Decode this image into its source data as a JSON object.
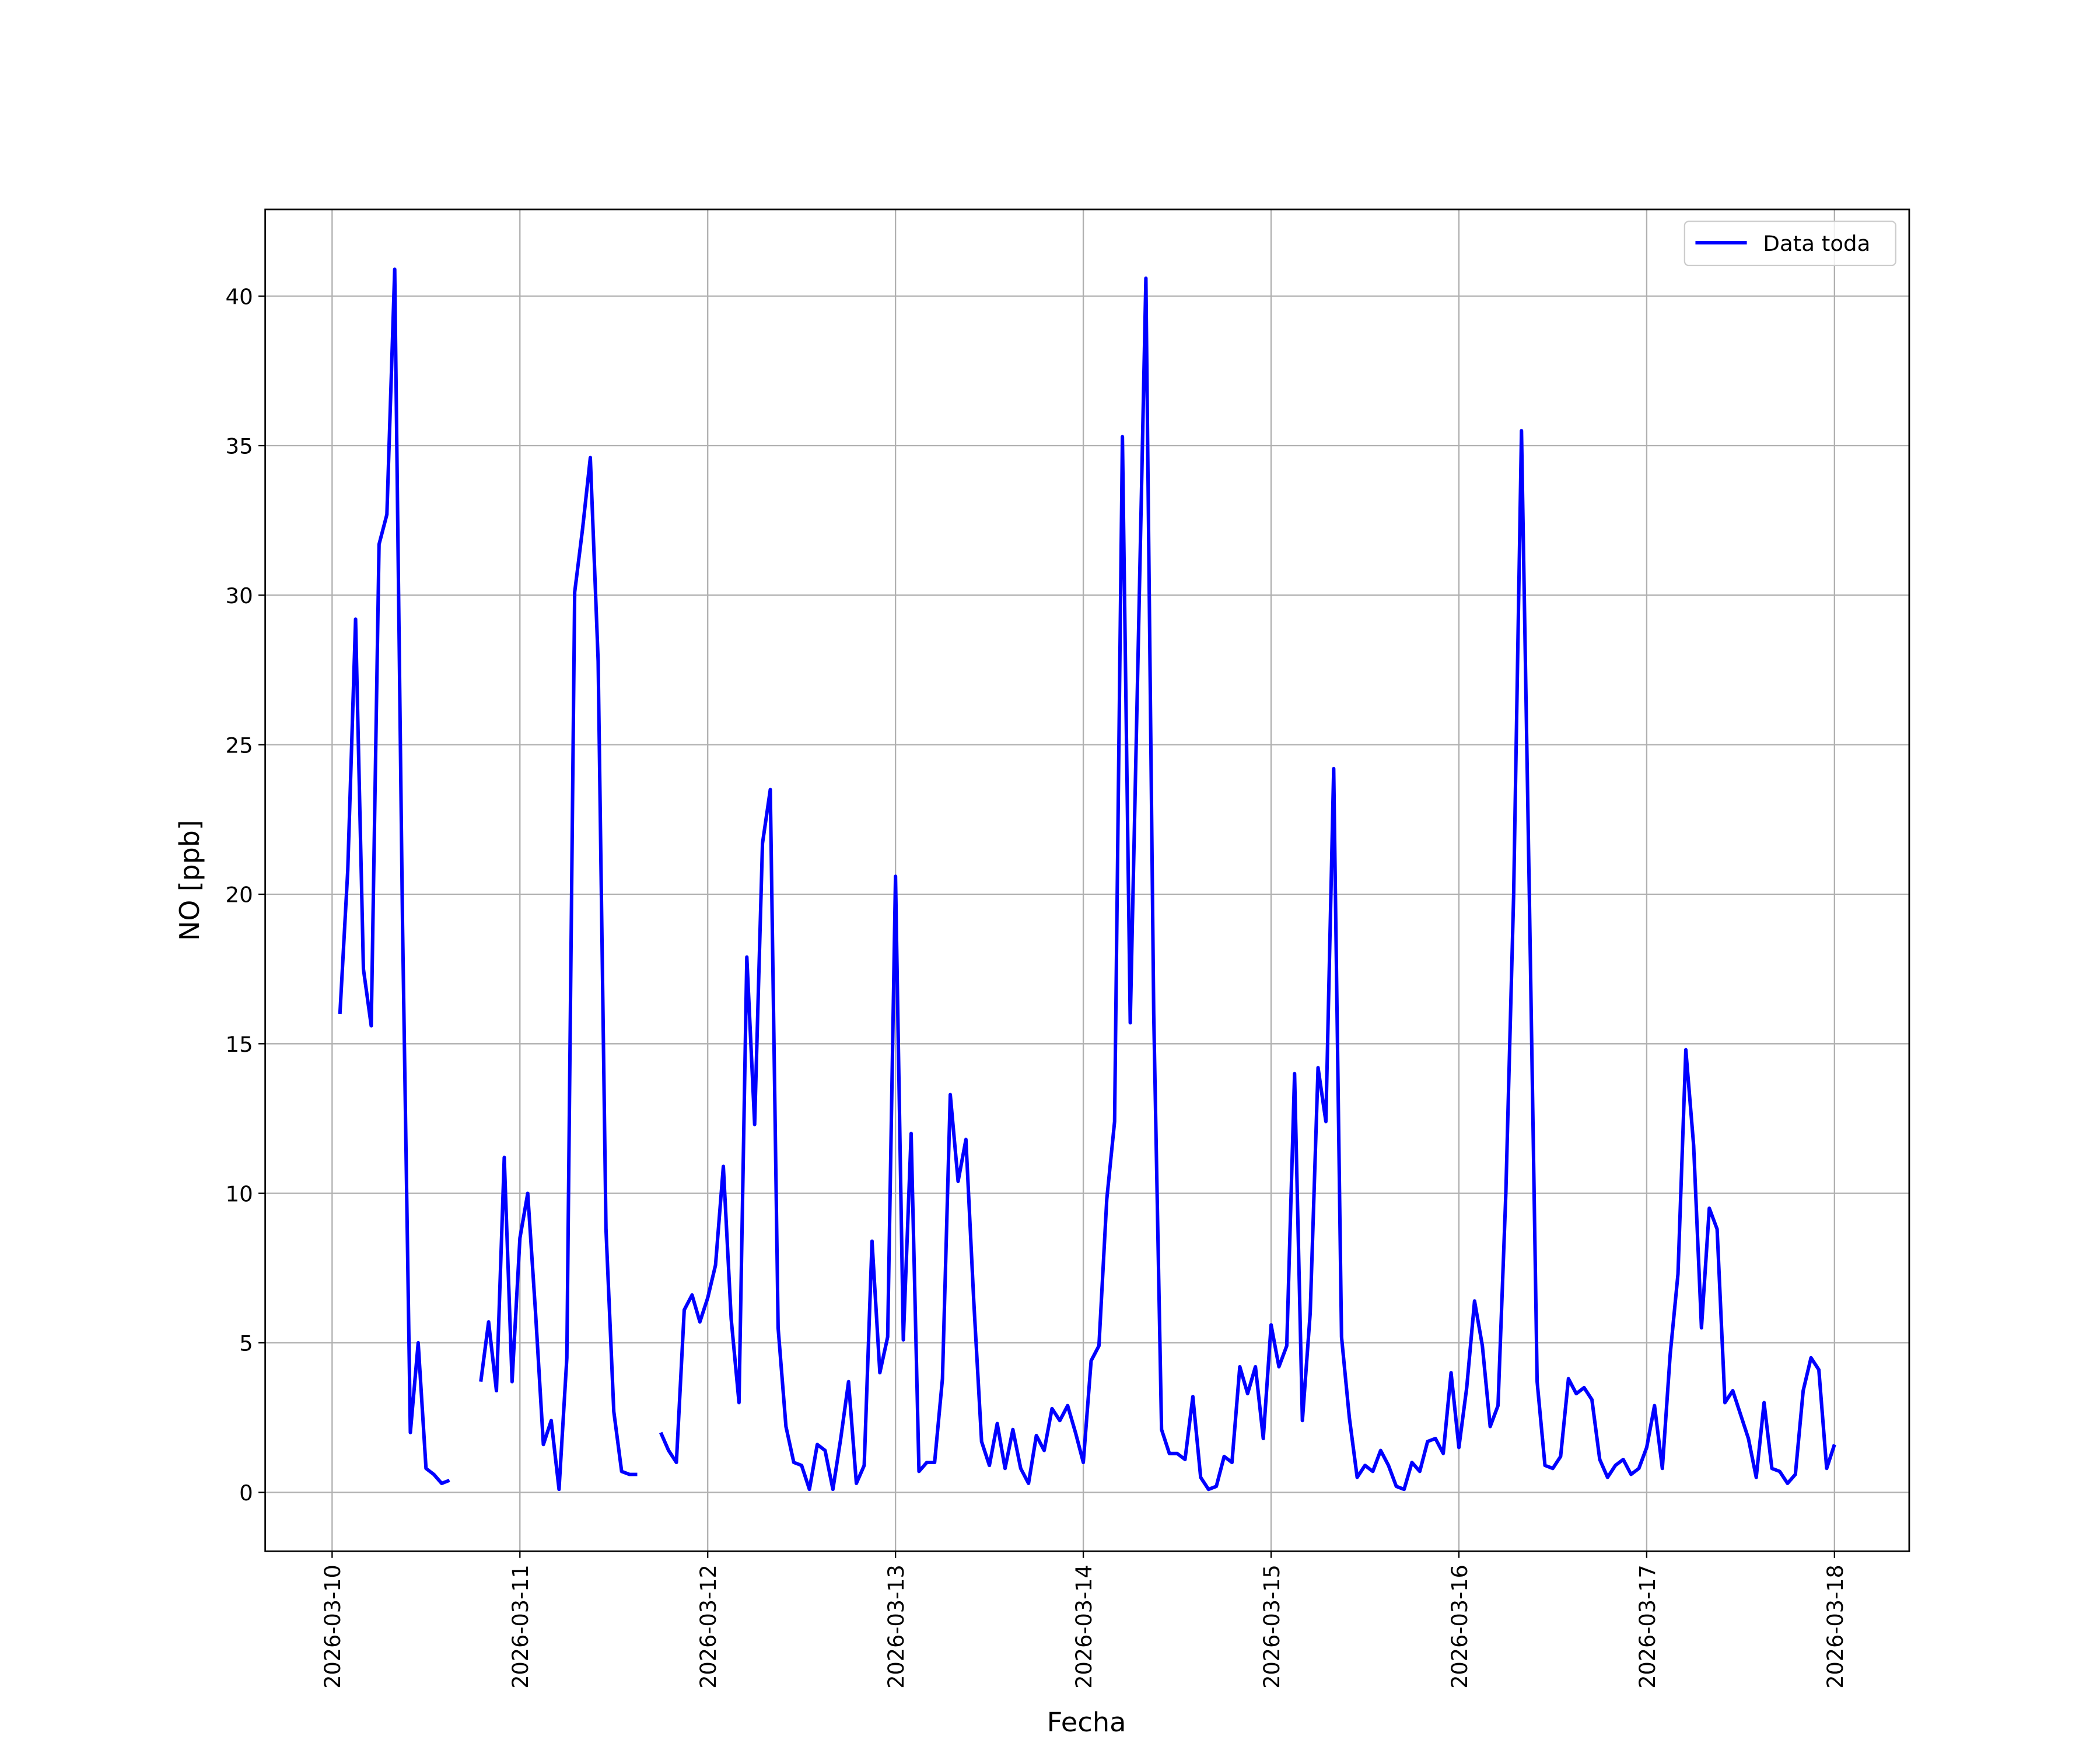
{
  "chart_data": {
    "type": "line",
    "xlabel": "Fecha",
    "ylabel": "NO [ppb]",
    "x": [
      "2026-03-10 01:00",
      "2026-03-10 02:00",
      "2026-03-10 03:00",
      "2026-03-10 04:00",
      "2026-03-10 05:00",
      "2026-03-10 06:00",
      "2026-03-10 07:00",
      "2026-03-10 08:00",
      "2026-03-10 09:00",
      "2026-03-10 10:00",
      "2026-03-10 11:00",
      "2026-03-10 12:00",
      "2026-03-10 13:00",
      "2026-03-10 14:00",
      "2026-03-10 15:00",
      "2026-03-10 16:00",
      "2026-03-10 17:00",
      "2026-03-10 18:00",
      "2026-03-10 19:00",
      "2026-03-10 20:00",
      "2026-03-10 21:00",
      "2026-03-10 22:00",
      "2026-03-10 23:00",
      "2026-03-11 00:00",
      "2026-03-11 01:00",
      "2026-03-11 02:00",
      "2026-03-11 03:00",
      "2026-03-11 04:00",
      "2026-03-11 05:00",
      "2026-03-11 06:00",
      "2026-03-11 07:00",
      "2026-03-11 08:00",
      "2026-03-11 09:00",
      "2026-03-11 10:00",
      "2026-03-11 11:00",
      "2026-03-11 12:00",
      "2026-03-11 13:00",
      "2026-03-11 14:00",
      "2026-03-11 15:00",
      "2026-03-11 16:00",
      "2026-03-11 17:00",
      "2026-03-11 18:00",
      "2026-03-11 19:00",
      "2026-03-11 20:00",
      "2026-03-11 21:00",
      "2026-03-11 22:00",
      "2026-03-11 23:00",
      "2026-03-12 00:00",
      "2026-03-12 01:00",
      "2026-03-12 02:00",
      "2026-03-12 03:00",
      "2026-03-12 04:00",
      "2026-03-12 05:00",
      "2026-03-12 06:00",
      "2026-03-12 07:00",
      "2026-03-12 08:00",
      "2026-03-12 09:00",
      "2026-03-12 10:00",
      "2026-03-12 11:00",
      "2026-03-12 12:00",
      "2026-03-12 13:00",
      "2026-03-12 14:00",
      "2026-03-12 15:00",
      "2026-03-12 16:00",
      "2026-03-12 17:00",
      "2026-03-12 18:00",
      "2026-03-12 19:00",
      "2026-03-12 20:00",
      "2026-03-12 21:00",
      "2026-03-12 22:00",
      "2026-03-12 23:00",
      "2026-03-13 00:00",
      "2026-03-13 01:00",
      "2026-03-13 02:00",
      "2026-03-13 03:00",
      "2026-03-13 04:00",
      "2026-03-13 05:00",
      "2026-03-13 06:00",
      "2026-03-13 07:00",
      "2026-03-13 08:00",
      "2026-03-13 09:00",
      "2026-03-13 10:00",
      "2026-03-13 11:00",
      "2026-03-13 12:00",
      "2026-03-13 13:00",
      "2026-03-13 14:00",
      "2026-03-13 15:00",
      "2026-03-13 16:00",
      "2026-03-13 17:00",
      "2026-03-13 18:00",
      "2026-03-13 19:00",
      "2026-03-13 20:00",
      "2026-03-13 21:00",
      "2026-03-13 22:00",
      "2026-03-13 23:00",
      "2026-03-14 00:00",
      "2026-03-14 01:00",
      "2026-03-14 02:00",
      "2026-03-14 03:00",
      "2026-03-14 04:00",
      "2026-03-14 05:00",
      "2026-03-14 06:00",
      "2026-03-14 07:00",
      "2026-03-14 08:00",
      "2026-03-14 09:00",
      "2026-03-14 10:00",
      "2026-03-14 11:00",
      "2026-03-14 12:00",
      "2026-03-14 13:00",
      "2026-03-14 14:00",
      "2026-03-14 15:00",
      "2026-03-14 16:00",
      "2026-03-14 17:00",
      "2026-03-14 18:00",
      "2026-03-14 19:00",
      "2026-03-14 20:00",
      "2026-03-14 21:00",
      "2026-03-14 22:00",
      "2026-03-14 23:00",
      "2026-03-15 00:00",
      "2026-03-15 01:00",
      "2026-03-15 02:00",
      "2026-03-15 03:00",
      "2026-03-15 04:00",
      "2026-03-15 05:00",
      "2026-03-15 06:00",
      "2026-03-15 07:00",
      "2026-03-15 08:00",
      "2026-03-15 09:00",
      "2026-03-15 10:00",
      "2026-03-15 11:00",
      "2026-03-15 12:00",
      "2026-03-15 13:00",
      "2026-03-15 14:00",
      "2026-03-15 15:00",
      "2026-03-15 16:00",
      "2026-03-15 17:00",
      "2026-03-15 18:00",
      "2026-03-15 19:00",
      "2026-03-15 20:00",
      "2026-03-15 21:00",
      "2026-03-15 22:00",
      "2026-03-15 23:00",
      "2026-03-16 00:00",
      "2026-03-16 01:00",
      "2026-03-16 02:00",
      "2026-03-16 03:00",
      "2026-03-16 04:00",
      "2026-03-16 05:00",
      "2026-03-16 06:00",
      "2026-03-16 07:00",
      "2026-03-16 08:00",
      "2026-03-16 09:00",
      "2026-03-16 10:00",
      "2026-03-16 11:00",
      "2026-03-16 12:00",
      "2026-03-16 13:00",
      "2026-03-16 14:00",
      "2026-03-16 15:00",
      "2026-03-16 16:00",
      "2026-03-16 17:00",
      "2026-03-16 18:00",
      "2026-03-16 19:00",
      "2026-03-16 20:00",
      "2026-03-16 21:00",
      "2026-03-16 22:00",
      "2026-03-16 23:00",
      "2026-03-17 00:00",
      "2026-03-17 01:00",
      "2026-03-17 02:00",
      "2026-03-17 03:00",
      "2026-03-17 04:00",
      "2026-03-17 05:00",
      "2026-03-17 06:00",
      "2026-03-17 07:00",
      "2026-03-17 08:00",
      "2026-03-17 09:00",
      "2026-03-17 10:00",
      "2026-03-17 11:00",
      "2026-03-17 12:00",
      "2026-03-17 13:00",
      "2026-03-17 14:00",
      "2026-03-17 15:00",
      "2026-03-17 16:00",
      "2026-03-17 17:00",
      "2026-03-17 18:00",
      "2026-03-17 19:00",
      "2026-03-17 20:00",
      "2026-03-17 21:00",
      "2026-03-17 22:00",
      "2026-03-17 23:00",
      "2026-03-18 00:00"
    ],
    "series": [
      {
        "name": "Data toda",
        "color": "#0000ff",
        "values": [
          16.0,
          20.8,
          29.2,
          17.5,
          15.6,
          31.7,
          32.7,
          40.9,
          19.0,
          2.0,
          5.0,
          0.8,
          0.6,
          0.3,
          0.4,
          null,
          null,
          null,
          3.7,
          5.7,
          3.4,
          11.2,
          3.7,
          8.5,
          10.0,
          6.0,
          1.6,
          2.4,
          0.1,
          4.5,
          30.1,
          32.2,
          34.6,
          27.8,
          8.8,
          2.7,
          0.7,
          0.6,
          0.6,
          null,
          null,
          2.0,
          1.4,
          1.0,
          6.1,
          6.6,
          5.7,
          6.5,
          7.6,
          10.9,
          5.8,
          3.0,
          17.9,
          12.3,
          21.7,
          23.5,
          5.5,
          2.2,
          1.0,
          0.9,
          0.1,
          1.6,
          1.4,
          0.1,
          1.8,
          3.7,
          0.3,
          0.9,
          8.4,
          4.0,
          5.2,
          20.6,
          5.1,
          12.0,
          0.7,
          1.0,
          1.0,
          3.8,
          13.3,
          10.4,
          11.8,
          6.4,
          1.7,
          0.9,
          2.3,
          0.8,
          2.1,
          0.8,
          0.3,
          1.9,
          1.4,
          2.8,
          2.4,
          2.9,
          2.0,
          1.0,
          4.4,
          4.9,
          9.8,
          12.4,
          35.3,
          15.7,
          28.0,
          40.6,
          16.0,
          2.1,
          1.3,
          1.3,
          1.1,
          3.2,
          0.5,
          0.1,
          0.2,
          1.2,
          1.0,
          4.2,
          3.3,
          4.2,
          1.8,
          5.6,
          4.2,
          4.9,
          14.0,
          2.4,
          6.0,
          14.2,
          12.4,
          24.2,
          5.2,
          2.5,
          0.5,
          0.9,
          0.7,
          1.4,
          0.9,
          0.2,
          0.1,
          1.0,
          0.7,
          1.7,
          1.8,
          1.3,
          4.0,
          1.5,
          3.5,
          6.4,
          4.9,
          2.2,
          2.9,
          10.0,
          20.0,
          35.5,
          20.0,
          3.7,
          0.9,
          0.8,
          1.2,
          3.8,
          3.3,
          3.5,
          3.1,
          1.1,
          0.5,
          0.9,
          1.1,
          0.6,
          0.8,
          1.5,
          2.9,
          0.8,
          4.6,
          7.3,
          14.8,
          11.6,
          5.5,
          9.5,
          8.8,
          3.0,
          3.4,
          2.6,
          1.8,
          0.5,
          3.0,
          0.8,
          0.7,
          0.3,
          0.6,
          3.4,
          4.5,
          4.1,
          0.8,
          1.6
        ]
      }
    ],
    "xlim": [
      "2026-03-09 15:27",
      "2026-03-18 09:33"
    ],
    "xticks": [
      "2026-03-10",
      "2026-03-11",
      "2026-03-12",
      "2026-03-13",
      "2026-03-14",
      "2026-03-15",
      "2026-03-16",
      "2026-03-17",
      "2026-03-18"
    ],
    "ylim": [
      -1.97,
      42.9
    ],
    "yticks": [
      0,
      5,
      10,
      15,
      20,
      25,
      30,
      35,
      40
    ],
    "grid": true,
    "legend": "upper right"
  }
}
